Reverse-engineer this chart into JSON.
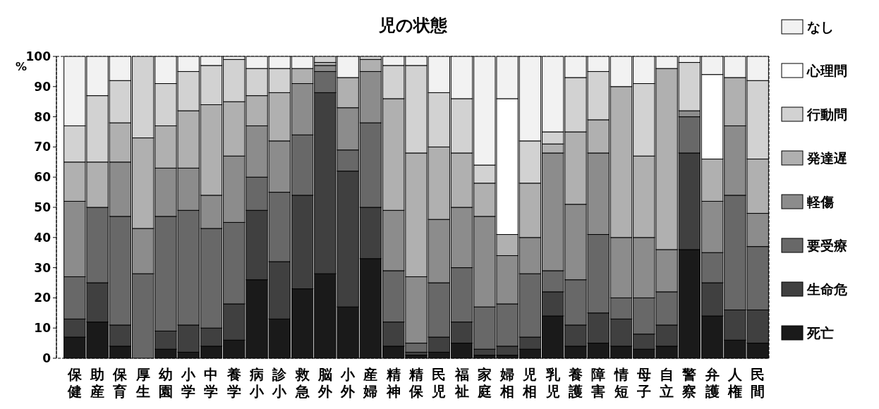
{
  "chart_data": {
    "type": "bar",
    "title": "児の状態",
    "ylabel": "%",
    "stacked": true,
    "legend": "right",
    "grid": false,
    "categories": [
      "保健",
      "助産",
      "保育",
      "厚生",
      "幼園",
      "小学",
      "中学",
      "養学",
      "病小",
      "診小",
      "救急",
      "脳外",
      "小外",
      "産婦",
      "精神",
      "精保",
      "民児",
      "福祉",
      "家庭",
      "婦相",
      "児相",
      "乳児",
      "養護",
      "障害",
      "情短",
      "母子",
      "自立",
      "警察",
      "弁護",
      "人権",
      "民間"
    ],
    "ylim": [
      0,
      100
    ],
    "yticks": [
      0,
      10,
      20,
      30,
      40,
      50,
      60,
      70,
      80,
      90,
      100
    ],
    "series": [
      {
        "name": "死亡",
        "color": "#1a1a1a",
        "values": [
          7,
          12,
          4,
          0,
          3,
          2,
          4,
          6,
          26,
          13,
          23,
          28,
          17,
          33,
          4,
          1,
          2,
          5,
          1,
          1,
          3,
          14,
          4,
          5,
          4,
          3,
          4,
          36,
          14,
          6,
          5
        ]
      },
      {
        "name": "生命危",
        "color": "#404040",
        "values": [
          6,
          13,
          7,
          0,
          6,
          9,
          6,
          12,
          23,
          19,
          31,
          60,
          45,
          17,
          8,
          1,
          5,
          7,
          2,
          3,
          4,
          8,
          7,
          10,
          9,
          5,
          7,
          32,
          11,
          10,
          11
        ]
      },
      {
        "name": "要受療",
        "color": "#686868",
        "values": [
          14,
          25,
          36,
          28,
          38,
          38,
          33,
          27,
          11,
          23,
          20,
          7,
          7,
          28,
          17,
          3,
          18,
          18,
          14,
          14,
          21,
          7,
          15,
          26,
          7,
          12,
          11,
          12,
          10,
          38,
          21
        ]
      },
      {
        "name": "軽傷",
        "color": "#8c8c8c",
        "values": [
          25,
          0,
          18,
          15,
          16,
          14,
          11,
          22,
          17,
          17,
          17,
          2,
          14,
          17,
          20,
          22,
          21,
          20,
          30,
          16,
          12,
          39,
          25,
          27,
          20,
          20,
          14,
          2,
          17,
          23,
          11
        ]
      },
      {
        "name": "発達遅",
        "color": "#b0b0b0",
        "values": [
          13,
          15,
          13,
          30,
          14,
          19,
          30,
          18,
          10,
          16,
          5,
          1,
          10,
          4,
          37,
          41,
          24,
          18,
          11,
          7,
          18,
          3,
          24,
          11,
          50,
          27,
          60,
          0,
          14,
          16,
          18
        ]
      },
      {
        "name": "行動問",
        "color": "#d2d2d2",
        "values": [
          12,
          22,
          14,
          27,
          14,
          13,
          13,
          14,
          9,
          8,
          0,
          2,
          0,
          1,
          11,
          29,
          18,
          18,
          6,
          0,
          14,
          4,
          18,
          16,
          0,
          24,
          0,
          16,
          0,
          0,
          26
        ]
      },
      {
        "name": "心理問",
        "color": "#ffffff",
        "values": [
          0,
          0,
          0,
          0,
          0,
          0,
          0,
          0,
          0,
          0,
          0,
          0,
          0,
          0,
          0,
          0,
          0,
          0,
          0,
          45,
          0,
          0,
          0,
          0,
          0,
          0,
          0,
          0,
          28,
          0,
          0
        ]
      },
      {
        "name": "なし",
        "color": "#f2f2f2",
        "values": [
          23,
          13,
          8,
          0,
          9,
          5,
          3,
          1,
          4,
          4,
          4,
          0,
          7,
          0,
          3,
          3,
          12,
          14,
          36,
          14,
          28,
          25,
          7,
          5,
          10,
          9,
          4,
          2,
          6,
          7,
          8
        ]
      }
    ]
  }
}
